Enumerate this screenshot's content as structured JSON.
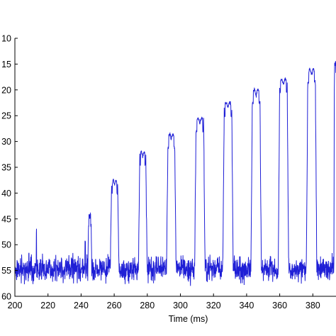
{
  "chart_data": {
    "type": "line",
    "title": "",
    "xlabel": "Time (ms)",
    "ylabel": "",
    "xlim": [
      200,
      394
    ],
    "ylim": [
      10,
      60
    ],
    "y_reversed": true,
    "grid": false,
    "line_color": "#1f1fd6",
    "xticks": [
      200,
      220,
      240,
      260,
      280,
      300,
      320,
      340,
      360,
      380
    ],
    "yticks": [
      10,
      15,
      20,
      25,
      30,
      35,
      40,
      45,
      50,
      55,
      60
    ],
    "baseline": 54.7,
    "baseline_noise": 2.4,
    "spikes": [
      {
        "x": 213,
        "y": 47.5
      },
      {
        "x": 242.5,
        "y": 49
      }
    ],
    "pulses": [
      {
        "start": 244.5,
        "end": 246,
        "peak": 44
      },
      {
        "start": 258.5,
        "end": 262,
        "peak": 37.5
      },
      {
        "start": 275.5,
        "end": 279,
        "peak": 32
      },
      {
        "start": 292.5,
        "end": 296.5,
        "peak": 28.5
      },
      {
        "start": 309.5,
        "end": 314,
        "peak": 25.5
      },
      {
        "start": 326.5,
        "end": 331,
        "peak": 22.5
      },
      {
        "start": 343.5,
        "end": 348,
        "peak": 20
      },
      {
        "start": 360,
        "end": 364.5,
        "peak": 18
      },
      {
        "start": 377,
        "end": 381.5,
        "peak": 16
      },
      {
        "start": 393,
        "end": 394,
        "peak": 14.5
      }
    ]
  }
}
